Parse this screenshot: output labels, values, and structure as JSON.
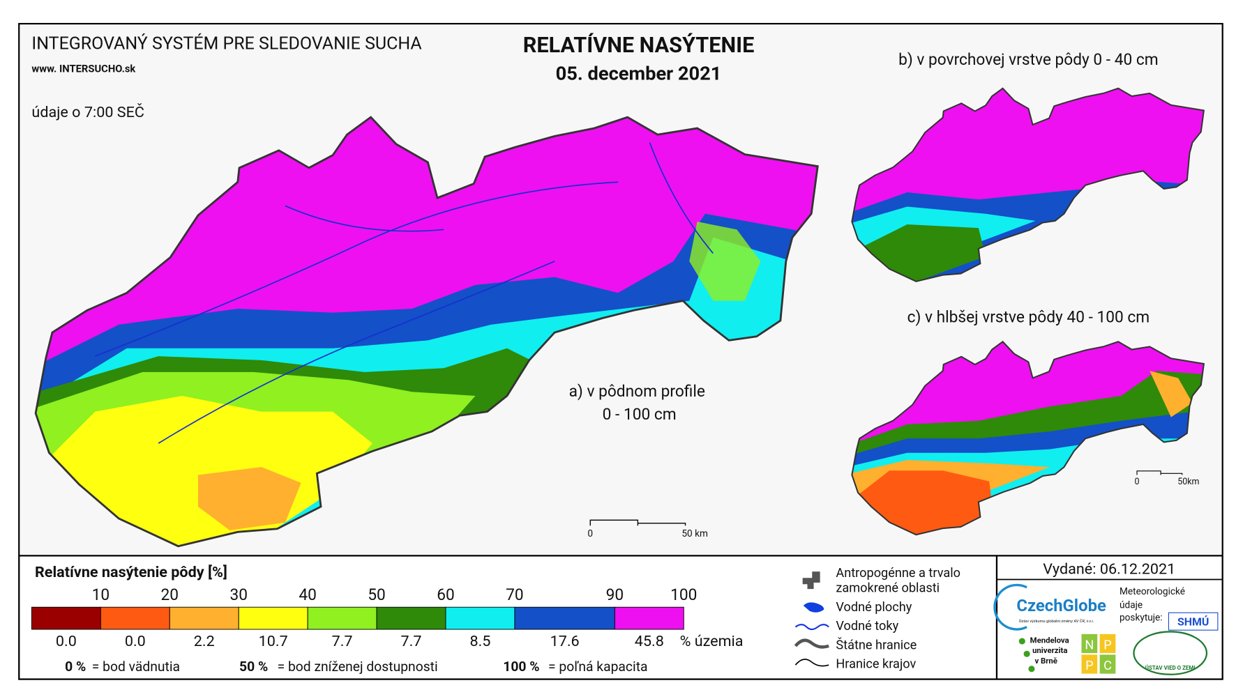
{
  "header": {
    "system_title": "INTEGROVANÝ SYSTÉM PRE SLEDOVANIE SUCHA",
    "website": "www. INTERSUCHO.sk",
    "time_note": "údaje o 7:00 SEČ",
    "title": "RELATÍVNE NASÝTENIE",
    "date": "05. december 2021"
  },
  "maps": [
    {
      "label": "a) v pôdnom profile",
      "sublabel": "0 - 100 cm",
      "scale_start": "0",
      "scale_end": "50 km"
    },
    {
      "label": "b) v povrchovej vrstve pôdy 0 - 40 cm"
    },
    {
      "label": "c) v hlbšej vrstve pôdy 40 - 100 cm",
      "scale_start": "0",
      "scale_end": "50km"
    }
  ],
  "legend": {
    "title": "Relatívne nasýtenie pôdy [%]",
    "thresholds": [
      "10",
      "20",
      "30",
      "40",
      "50",
      "60",
      "70",
      "90",
      "100"
    ],
    "classes": [
      {
        "color": "#9b0000",
        "share": "0.0"
      },
      {
        "color": "#ff5a12",
        "share": "0.0"
      },
      {
        "color": "#ffb02e",
        "share": "2.2"
      },
      {
        "color": "#ffff10",
        "share": "10.7"
      },
      {
        "color": "#90f020",
        "share": "7.7"
      },
      {
        "color": "#2e8a08",
        "share": "7.7"
      },
      {
        "color": "#10eef0",
        "share": "8.5"
      },
      {
        "color": "#1450c8",
        "share": "17.6"
      },
      {
        "color": "#ee10f0",
        "share": "45.8"
      }
    ],
    "share_unit": "% územia",
    "notes": [
      {
        "key": "0 %",
        "text": "= bod vädnutia"
      },
      {
        "key": "50 %",
        "text": "= bod zníženej dostupnosti"
      },
      {
        "key": "100 %",
        "text": "= poľná kapacita"
      }
    ]
  },
  "map_legend": [
    "Antropogénne a trvalo",
    "zamokrené oblasti",
    "Vodné plochy",
    "Vodné toky",
    "Štátne hranice",
    "Hranice krajov"
  ],
  "footer": {
    "issued": "Vydané: 06.12.2021",
    "czechglobe": "CzechGlobe",
    "czechglobe_sub": "Ústav výzkumu globální změny AV ČR, v.v.i.",
    "shmu_note": [
      "Meteorologické",
      "údaje",
      "poskytuje:"
    ],
    "shmu": "SHMÚ",
    "mendel": [
      "Mendelova",
      "univerzita",
      "v Brně"
    ],
    "nppc": [
      "N",
      "P",
      "P",
      "C"
    ],
    "uvz": "ÚSTAV VIED O ZEMI"
  }
}
